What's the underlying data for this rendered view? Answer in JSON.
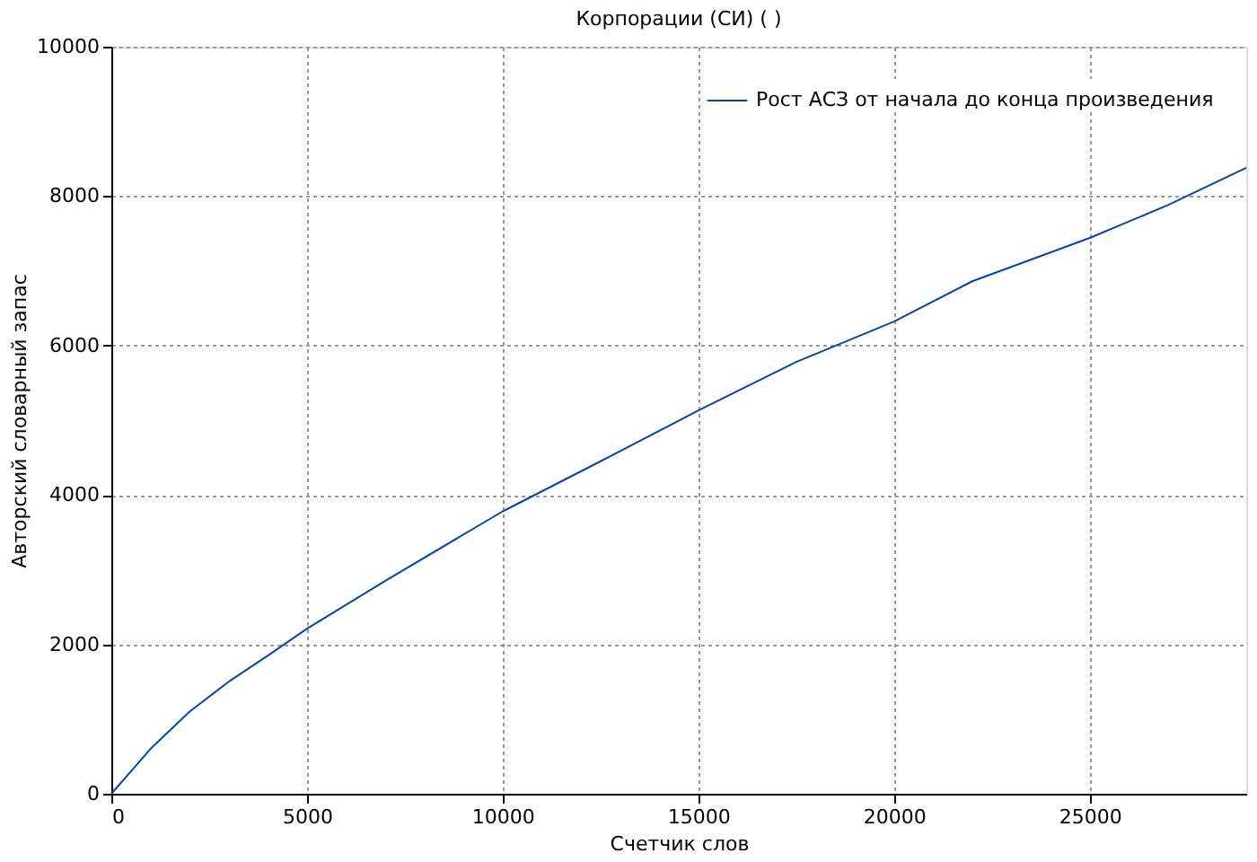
{
  "chart_data": {
    "type": "line",
    "title": "Корпорации (СИ) ( )",
    "xlabel": "Счетчик слов",
    "ylabel": "Авторский словарный запас",
    "x": [
      0,
      500,
      1000,
      2000,
      3000,
      4000,
      5000,
      7000,
      10000,
      12500,
      15000,
      17500,
      20000,
      22000,
      25000,
      27000,
      29000
    ],
    "series": [
      {
        "name": "Рост АСЗ от начала до конца произведения",
        "color": "#0044bb",
        "values": [
          0,
          300,
          600,
          1100,
          1500,
          1850,
          2210,
          2850,
          3780,
          4450,
          5130,
          5780,
          6320,
          6860,
          7440,
          7880,
          8380
        ]
      }
    ],
    "xlim": [
      0,
      29000
    ],
    "xticks": [
      0,
      5000,
      10000,
      15000,
      20000,
      25000
    ],
    "ylim": [
      0,
      10000
    ],
    "yticks": [
      0,
      2000,
      4000,
      6000,
      8000,
      10000
    ],
    "grid": true,
    "legend": "top right",
    "line_style": "solid",
    "marker": "none"
  }
}
